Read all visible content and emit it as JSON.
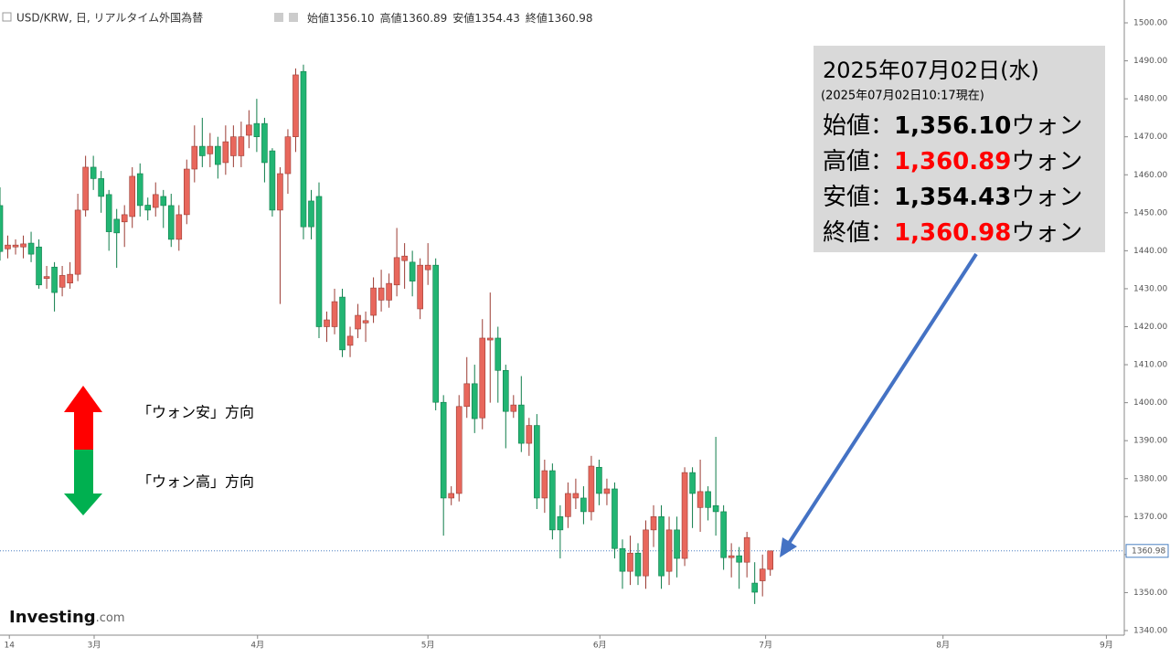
{
  "header": {
    "symbol": "USD/KRW, 日, リアルタイム外国為替",
    "ohlc": [
      {
        "name": "始値",
        "value": "1356.10"
      },
      {
        "name": "高値",
        "value": "1360.89"
      },
      {
        "name": "安値",
        "value": "1354.43"
      },
      {
        "name": "終値",
        "value": "1360.98"
      }
    ]
  },
  "annotation": {
    "date": "2025年07月02日(水)",
    "as_of": "(2025年07月02日10:17現在)",
    "rows": [
      {
        "label": "始値：",
        "value": "1,356.10",
        "unit": "ウォン",
        "color": "#000000"
      },
      {
        "label": "高値：",
        "value": "1,360.89",
        "unit": "ウォン",
        "color": "#ff0000"
      },
      {
        "label": "安値：",
        "value": "1,354.43",
        "unit": "ウォン",
        "color": "#000000"
      },
      {
        "label": "終値：",
        "value": "1,360.98",
        "unit": "ウォン",
        "color": "#ff0000"
      }
    ]
  },
  "legend_note": {
    "up": "「ウォン安」方向",
    "down": "「ウォン高」方向"
  },
  "logo": {
    "name": "Investing",
    "suffix": ".com"
  },
  "chart_data": {
    "type": "candlestick",
    "up_color": "#e8675c",
    "down_color": "#22b573",
    "x": [
      0,
      1,
      2,
      3,
      4,
      5,
      6,
      7,
      8,
      9,
      10,
      11,
      12,
      13,
      14,
      15,
      16,
      17,
      18,
      19,
      20,
      21,
      22,
      23,
      24,
      25,
      26,
      27,
      28,
      29,
      30,
      31,
      32,
      33,
      34,
      35,
      36,
      37,
      38,
      39,
      40,
      41,
      42,
      43,
      44,
      45,
      46,
      47,
      48,
      49,
      50,
      51,
      52,
      53,
      54,
      55,
      56,
      57,
      58,
      59,
      60,
      61,
      62,
      63,
      64,
      65,
      66,
      67,
      68,
      69,
      70,
      71,
      72,
      73,
      74,
      75,
      76,
      77,
      78,
      79,
      80,
      81,
      82,
      83,
      84,
      85,
      86,
      87,
      88,
      89,
      90,
      91,
      92,
      93,
      94,
      95,
      96,
      97,
      98,
      99
    ],
    "open": [
      1451.9,
      1440.5,
      1441,
      1441,
      1442,
      1441,
      1432.7,
      1435.7,
      1430.4,
      1431.5,
      1433.8,
      1450.7,
      1462,
      1459,
      1454.8,
      1448.3,
      1447.6,
      1449,
      1460.3,
      1452,
      1451.4,
      1454.3,
      1451.9,
      1443,
      1449.5,
      1461.5,
      1467.5,
      1465.5,
      1467.5,
      1463.2,
      1465,
      1465,
      1470.4,
      1473.5,
      1473.5,
      1466.3,
      1450.7,
      1460.3,
      1470,
      1487.2,
      1453.1,
      1454.3,
      1420,
      1420,
      1427.8,
      1415.1,
      1419.4,
      1421,
      1423,
      1427,
      1427,
      1431,
      1437.4,
      1437,
      1424.7,
      1435,
      1436.2,
      1400.1,
      1374.9,
      1376.1,
      1399,
      1405,
      1396,
      1416.5,
      1417,
      1408.5,
      1397.7,
      1399.4,
      1389.3,
      1394,
      1374.9,
      1382.1,
      1370,
      1370,
      1374.9,
      1374.9,
      1371.3,
      1383,
      1376.1,
      1377.3,
      1361.6,
      1355.6,
      1360.4,
      1354.4,
      1366.5,
      1370,
      1355.6,
      1366.5,
      1359,
      1381.6,
      1372.4,
      1376.6,
      1372.9,
      1371.3,
      1359.2,
      1359.7,
      1358,
      1352.5,
      1353.1,
      1356.1
    ],
    "high": [
      1456.7,
      1444,
      1443,
      1444,
      1445,
      1443,
      1436,
      1437,
      1436,
      1437,
      1455,
      1465,
      1465,
      1461,
      1456,
      1451,
      1452,
      1462,
      1463,
      1454,
      1458,
      1456,
      1455,
      1452,
      1464,
      1473,
      1475,
      1471,
      1470,
      1473,
      1473,
      1474,
      1477,
      1480,
      1475,
      1467,
      1462,
      1472,
      1488,
      1489,
      1456,
      1458,
      1424,
      1430,
      1430,
      1420,
      1426,
      1424,
      1433,
      1435,
      1434,
      1446,
      1442,
      1440,
      1438,
      1442,
      1438,
      1402,
      1378,
      1402,
      1412,
      1410,
      1422,
      1429,
      1420,
      1410,
      1402,
      1407,
      1396,
      1397,
      1385,
      1384,
      1373,
      1379,
      1380,
      1378,
      1386,
      1385,
      1380,
      1379,
      1364,
      1365,
      1363,
      1369,
      1373,
      1373,
      1370,
      1370,
      1383,
      1383,
      1385,
      1378,
      1391,
      1373,
      1363,
      1362,
      1366,
      1358,
      1360,
      1360.89
    ],
    "low": [
      1437.4,
      1438,
      1439,
      1438,
      1437,
      1430,
      1430,
      1424,
      1428,
      1430,
      1432,
      1449,
      1456,
      1450,
      1440,
      1435.5,
      1441,
      1446,
      1449,
      1448,
      1449,
      1446,
      1441,
      1440,
      1447,
      1458,
      1462,
      1462,
      1459,
      1460,
      1462,
      1462,
      1467,
      1466,
      1458,
      1449,
      1426,
      1455,
      1466,
      1443,
      1443,
      1417,
      1416,
      1418,
      1412,
      1412,
      1417,
      1416,
      1421,
      1424,
      1425,
      1428,
      1430,
      1428,
      1422,
      1431,
      1398,
      1365,
      1373,
      1374,
      1396,
      1392,
      1393,
      1400,
      1400,
      1388,
      1396,
      1387,
      1386,
      1372,
      1371,
      1364,
      1359,
      1367,
      1372,
      1368,
      1369,
      1373,
      1373,
      1359,
      1351,
      1352,
      1352,
      1351,
      1362,
      1351,
      1352,
      1354,
      1357,
      1367,
      1366,
      1369,
      1365,
      1356,
      1354,
      1351,
      1354,
      1347,
      1349,
      1354.43
    ],
    "close": [
      1439.8,
      1441.5,
      1441.5,
      1441.8,
      1439.1,
      1431,
      1433.2,
      1429,
      1433.5,
      1433.8,
      1450.7,
      1462,
      1459,
      1454.3,
      1445,
      1444.7,
      1449.5,
      1459.6,
      1451.9,
      1450.7,
      1454.8,
      1451.9,
      1443,
      1449.5,
      1461.5,
      1467.5,
      1465,
      1467.5,
      1462.7,
      1468.7,
      1470,
      1470,
      1473.1,
      1470,
      1463.2,
      1450.7,
      1460.3,
      1470,
      1486.3,
      1446.3,
      1446.3,
      1420,
      1421.8,
      1426.6,
      1413.9,
      1417.5,
      1423,
      1421.6,
      1430.2,
      1430.2,
      1431.4,
      1438.2,
      1438.6,
      1432,
      1436.2,
      1436.2,
      1400.1,
      1374.9,
      1376.1,
      1399,
      1405,
      1395.8,
      1417,
      1417,
      1408.5,
      1397.7,
      1399.4,
      1389.3,
      1394,
      1374.9,
      1382.1,
      1366.5,
      1366.5,
      1376.1,
      1376.1,
      1371.3,
      1383.3,
      1376.1,
      1377.3,
      1361.6,
      1355.6,
      1360.4,
      1354.4,
      1366.5,
      1370,
      1354.4,
      1366.5,
      1359,
      1381.6,
      1376.1,
      1376.6,
      1372.4,
      1371.3,
      1359.2,
      1359.7,
      1358,
      1364.5,
      1350.1,
      1356.2,
      1360.98
    ],
    "xlim": [
      0,
      144.5
    ],
    "xticks": [
      {
        "value": 1.2,
        "label": "14"
      },
      {
        "value": 12.1,
        "label": "3月"
      },
      {
        "value": 33.1,
        "label": "4月"
      },
      {
        "value": 55,
        "label": "5月"
      },
      {
        "value": 77.1,
        "label": "6月"
      },
      {
        "value": 98.4,
        "label": "7月"
      },
      {
        "value": 121.2,
        "label": "8月"
      },
      {
        "value": 142.2,
        "label": "9月"
      }
    ],
    "ylim": [
      1340,
      1500
    ],
    "yticks": [
      {
        "value": 1340,
        "label": "1340.00"
      },
      {
        "value": 1350,
        "label": "1350.00"
      },
      {
        "value": 1360,
        "label": "1360.00"
      },
      {
        "value": 1370,
        "label": "1370.00"
      },
      {
        "value": 1380,
        "label": "1380.00"
      },
      {
        "value": 1390,
        "label": "1390.00"
      },
      {
        "value": 1400,
        "label": "1400.00"
      },
      {
        "value": 1410,
        "label": "1410.00"
      },
      {
        "value": 1420,
        "label": "1420.00"
      },
      {
        "value": 1430,
        "label": "1430.00"
      },
      {
        "value": 1440,
        "label": "1440.00"
      },
      {
        "value": 1450,
        "label": "1450.00"
      },
      {
        "value": 1460,
        "label": "1460.00"
      },
      {
        "value": 1470,
        "label": "1470.00"
      },
      {
        "value": 1480,
        "label": "1480.00"
      },
      {
        "value": 1490,
        "label": "1490.00"
      },
      {
        "value": 1500,
        "label": "1500.00"
      }
    ],
    "last_price": {
      "value": 1360.98,
      "label": "1360.98"
    }
  }
}
